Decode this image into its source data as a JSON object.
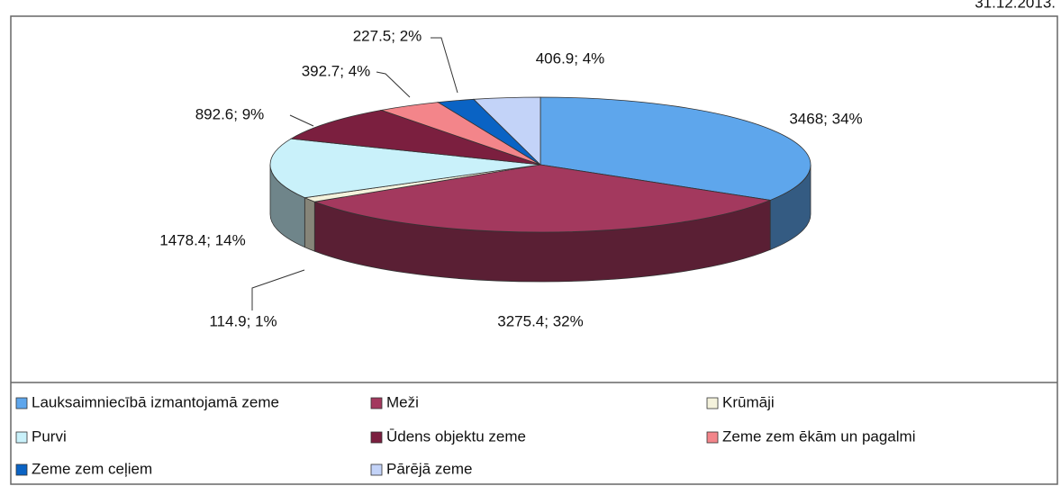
{
  "chart_data": {
    "type": "pie",
    "date": "31.12.2013.",
    "categories": [
      "Lauksaimniecībā izmantojamā zeme",
      "Meži",
      "Krūmāji",
      "Purvi",
      "Ūdens objektu zeme",
      "Zeme zem ēkām un pagalmi",
      "Zeme zem ceļiem",
      "Pārējā zeme"
    ],
    "values": [
      3468,
      3275.4,
      114.9,
      1478.4,
      892.6,
      392.7,
      227.5,
      406.9
    ],
    "value_labels": [
      "3468; 34%",
      "3275.4; 32%",
      "114.9; 1%",
      "1478.4; 14%",
      "892.6; 9%",
      "392.7; 4%",
      "227.5; 2%",
      "406.9; 4%"
    ],
    "colors": [
      "#5ea6ec",
      "#a3395e",
      "#f4f2dc",
      "#c9f1fa",
      "#7b1f3f",
      "#f3858a",
      "#0a63c4",
      "#c3d3f8"
    ],
    "legend": "bottom"
  }
}
